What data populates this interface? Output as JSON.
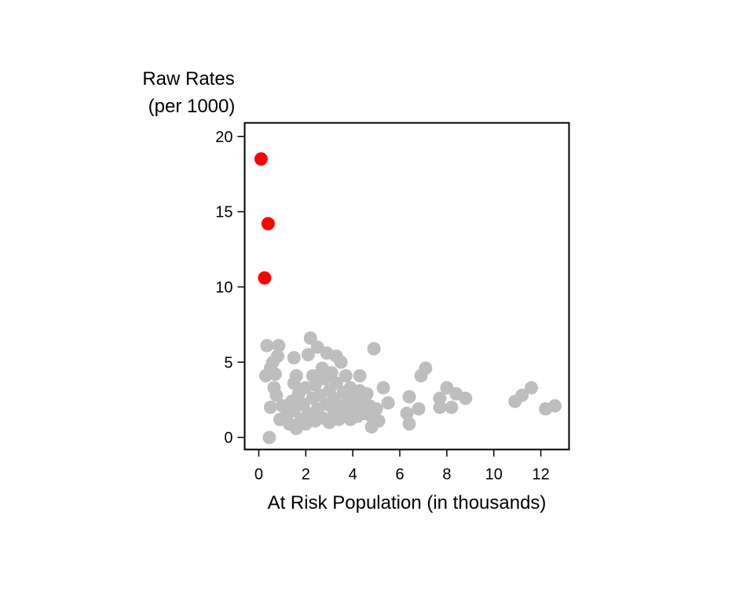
{
  "chart_data": {
    "type": "scatter",
    "title": "",
    "ylabel_line1": "Raw Rates",
    "ylabel_line2": "(per 1000)",
    "xlabel": "At Risk Population (in thousands)",
    "xlim": [
      -0.6,
      13.2
    ],
    "ylim": [
      -0.8,
      20.9
    ],
    "xticks": [
      0,
      2,
      4,
      6,
      8,
      10,
      12
    ],
    "yticks": [
      0,
      5,
      10,
      15,
      20
    ],
    "grid": false,
    "colors": {
      "normal": "#bebebe",
      "highlight": "#ff0000",
      "axis": "#000000"
    },
    "series": [
      {
        "color": "#bebebe",
        "points": [
          [
            0.45,
            0.0
          ],
          [
            0.35,
            6.1
          ],
          [
            0.85,
            6.1
          ],
          [
            0.3,
            4.1
          ],
          [
            0.5,
            4.6
          ],
          [
            0.6,
            5.0
          ],
          [
            0.7,
            4.2
          ],
          [
            0.8,
            5.4
          ],
          [
            0.65,
            3.3
          ],
          [
            0.75,
            2.8
          ],
          [
            0.5,
            2.0
          ],
          [
            0.9,
            1.2
          ],
          [
            1.0,
            2.1
          ],
          [
            1.2,
            1.5
          ],
          [
            1.3,
            0.9
          ],
          [
            1.4,
            2.4
          ],
          [
            1.5,
            1.8
          ],
          [
            1.5,
            3.6
          ],
          [
            1.6,
            4.1
          ],
          [
            1.6,
            0.6
          ],
          [
            1.7,
            2.9
          ],
          [
            1.8,
            1.2
          ],
          [
            1.9,
            2.2
          ],
          [
            1.5,
            5.3
          ],
          [
            2.0,
            0.9
          ],
          [
            2.0,
            3.3
          ],
          [
            2.1,
            1.6
          ],
          [
            2.1,
            5.5
          ],
          [
            2.2,
            6.6
          ],
          [
            2.3,
            2.6
          ],
          [
            2.3,
            4.1
          ],
          [
            2.4,
            1.1
          ],
          [
            2.4,
            3.5
          ],
          [
            2.5,
            6.0
          ],
          [
            2.5,
            1.9
          ],
          [
            2.6,
            2.8
          ],
          [
            2.7,
            4.6
          ],
          [
            2.7,
            1.3
          ],
          [
            2.8,
            3.9
          ],
          [
            2.9,
            5.6
          ],
          [
            2.9,
            2.2
          ],
          [
            3.0,
            1.0
          ],
          [
            3.0,
            3.1
          ],
          [
            3.1,
            4.3
          ],
          [
            3.2,
            1.7
          ],
          [
            3.2,
            2.6
          ],
          [
            3.3,
            5.4
          ],
          [
            3.3,
            3.6
          ],
          [
            3.4,
            1.2
          ],
          [
            3.5,
            2.1
          ],
          [
            3.5,
            5.0
          ],
          [
            3.6,
            3.0
          ],
          [
            3.7,
            1.6
          ],
          [
            3.7,
            4.1
          ],
          [
            3.8,
            2.4
          ],
          [
            3.9,
            1.2
          ],
          [
            3.9,
            3.3
          ],
          [
            4.0,
            2.0
          ],
          [
            4.1,
            2.7
          ],
          [
            4.2,
            1.4
          ],
          [
            4.3,
            4.1
          ],
          [
            4.3,
            3.1
          ],
          [
            4.4,
            2.2
          ],
          [
            4.5,
            1.6
          ],
          [
            4.6,
            2.9
          ],
          [
            4.7,
            2.1
          ],
          [
            4.8,
            0.7
          ],
          [
            4.8,
            1.4
          ],
          [
            4.9,
            5.9
          ],
          [
            5.0,
            1.9
          ],
          [
            5.1,
            1.1
          ],
          [
            5.3,
            3.3
          ],
          [
            5.5,
            2.3
          ],
          [
            6.3,
            1.6
          ],
          [
            6.4,
            0.9
          ],
          [
            6.4,
            2.7
          ],
          [
            6.8,
            1.9
          ],
          [
            6.9,
            4.1
          ],
          [
            7.1,
            4.6
          ],
          [
            7.7,
            2.0
          ],
          [
            7.7,
            2.6
          ],
          [
            8.0,
            3.3
          ],
          [
            8.2,
            2.0
          ],
          [
            8.4,
            2.9
          ],
          [
            8.8,
            2.6
          ],
          [
            10.9,
            2.4
          ],
          [
            11.2,
            2.8
          ],
          [
            11.6,
            3.3
          ],
          [
            12.2,
            1.9
          ],
          [
            12.6,
            2.1
          ]
        ]
      },
      {
        "color": "#ff0000",
        "points": [
          [
            0.1,
            18.5
          ],
          [
            0.4,
            14.2
          ],
          [
            0.25,
            10.6
          ]
        ]
      }
    ]
  }
}
